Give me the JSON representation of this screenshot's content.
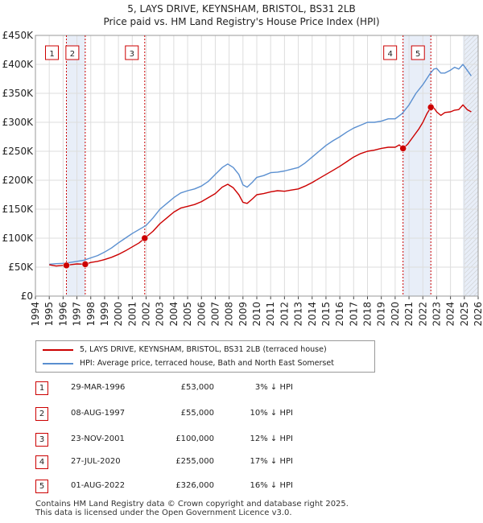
{
  "chart_data": {
    "type": "line",
    "title": "5, LAYS DRIVE, KEYNSHAM, BRISTOL, BS31 2LB",
    "subtitle": "Price paid vs. HM Land Registry's House Price Index (HPI)",
    "xlabel": "",
    "ylabel": "",
    "xlim": [
      1994,
      2026
    ],
    "ylim": [
      0,
      450000
    ],
    "x_ticks": [
      "1994",
      "1995",
      "1996",
      "1997",
      "1998",
      "1999",
      "2000",
      "2001",
      "2002",
      "2003",
      "2004",
      "2005",
      "2006",
      "2007",
      "2008",
      "2009",
      "2010",
      "2011",
      "2012",
      "2013",
      "2014",
      "2015",
      "2016",
      "2017",
      "2018",
      "2019",
      "2020",
      "2021",
      "2022",
      "2023",
      "2024",
      "2025",
      "2026"
    ],
    "y_ticks": [
      {
        "value": 0,
        "label": "£0"
      },
      {
        "value": 50000,
        "label": "£50K"
      },
      {
        "value": 100000,
        "label": "£100K"
      },
      {
        "value": 150000,
        "label": "£150K"
      },
      {
        "value": 200000,
        "label": "£200K"
      },
      {
        "value": 250000,
        "label": "£250K"
      },
      {
        "value": 300000,
        "label": "£300K"
      },
      {
        "value": 350000,
        "label": "£350K"
      },
      {
        "value": 400000,
        "label": "£400K"
      },
      {
        "value": 450000,
        "label": "£450K"
      }
    ],
    "shaded_spans": [
      [
        1996.24,
        1997.6
      ],
      [
        2020.57,
        2022.58
      ],
      [
        2024.9,
        2026
      ]
    ],
    "series": [
      {
        "name": "5, LAYS DRIVE, KEYNSHAM, BRISTOL, BS31 2LB (terraced house)",
        "color": "#cc0000",
        "x": [
          1995.0,
          1995.5,
          1996.0,
          1996.24,
          1996.6,
          1997.0,
          1997.6,
          1998.0,
          1998.5,
          1999.0,
          1999.5,
          2000.0,
          2000.5,
          2001.0,
          2001.5,
          2001.9,
          2002.5,
          2003.0,
          2003.5,
          2004.0,
          2004.5,
          2005.0,
          2005.5,
          2006.0,
          2006.5,
          2007.0,
          2007.5,
          2007.9,
          2008.3,
          2008.7,
          2009.0,
          2009.3,
          2009.7,
          2010.0,
          2010.5,
          2011.0,
          2011.5,
          2012.0,
          2012.5,
          2013.0,
          2013.5,
          2014.0,
          2014.5,
          2015.0,
          2015.5,
          2016.0,
          2016.5,
          2017.0,
          2017.5,
          2018.0,
          2018.5,
          2019.0,
          2019.5,
          2020.0,
          2020.3,
          2020.57,
          2020.9,
          2021.3,
          2021.7,
          2022.0,
          2022.3,
          2022.58,
          2022.8,
          2023.0,
          2023.3,
          2023.6,
          2024.0,
          2024.3,
          2024.6,
          2024.9,
          2025.2,
          2025.5
        ],
        "y": [
          54000,
          52000,
          53000,
          53000,
          54500,
          55500,
          55000,
          58000,
          60000,
          63000,
          67000,
          72000,
          78000,
          85000,
          92000,
          100000,
          112000,
          125000,
          135000,
          145000,
          152000,
          155000,
          158000,
          163000,
          170000,
          177000,
          188000,
          193000,
          187000,
          175000,
          162000,
          160000,
          168000,
          175000,
          177000,
          180000,
          182000,
          181000,
          183000,
          185000,
          190000,
          196000,
          203000,
          210000,
          217000,
          224000,
          232000,
          240000,
          246000,
          250000,
          252000,
          255000,
          257000,
          257000,
          261000,
          255000,
          262000,
          275000,
          288000,
          300000,
          315000,
          326000,
          325000,
          318000,
          312000,
          317000,
          318000,
          321000,
          322000,
          330000,
          322000,
          318000
        ]
      },
      {
        "name": "HPI: Average price, terraced house, Bath and North East Somerset",
        "color": "#5a8fd0",
        "x": [
          1995.0,
          1995.5,
          1996.0,
          1996.5,
          1997.0,
          1997.5,
          1998.0,
          1998.5,
          1999.0,
          1999.5,
          2000.0,
          2000.5,
          2001.0,
          2001.5,
          2002.0,
          2002.5,
          2003.0,
          2003.5,
          2004.0,
          2004.5,
          2005.0,
          2005.5,
          2006.0,
          2006.5,
          2007.0,
          2007.5,
          2007.9,
          2008.3,
          2008.7,
          2009.0,
          2009.3,
          2009.7,
          2010.0,
          2010.5,
          2011.0,
          2011.5,
          2012.0,
          2012.5,
          2013.0,
          2013.5,
          2014.0,
          2014.5,
          2015.0,
          2015.5,
          2016.0,
          2016.5,
          2017.0,
          2017.5,
          2018.0,
          2018.5,
          2019.0,
          2019.5,
          2020.0,
          2020.5,
          2021.0,
          2021.5,
          2022.0,
          2022.5,
          2022.8,
          2023.0,
          2023.3,
          2023.6,
          2024.0,
          2024.3,
          2024.6,
          2024.9,
          2025.2,
          2025.5
        ],
        "y": [
          55000,
          56000,
          56500,
          58000,
          60000,
          62000,
          66000,
          70000,
          76000,
          83000,
          92000,
          100000,
          108000,
          115000,
          122000,
          135000,
          150000,
          160000,
          170000,
          178000,
          182000,
          185000,
          190000,
          198000,
          210000,
          222000,
          228000,
          222000,
          210000,
          192000,
          188000,
          197000,
          205000,
          208000,
          213000,
          214000,
          216000,
          219000,
          222000,
          230000,
          240000,
          250000,
          260000,
          268000,
          275000,
          283000,
          290000,
          295000,
          300000,
          300000,
          302000,
          306000,
          306000,
          315000,
          330000,
          350000,
          365000,
          383000,
          392000,
          393000,
          385000,
          385000,
          390000,
          395000,
          392000,
          400000,
          390000,
          380000
        ]
      }
    ],
    "transactions": [
      {
        "num": "1",
        "x": 1996.24,
        "price": 53000
      },
      {
        "num": "2",
        "x": 1997.6,
        "price": 55000
      },
      {
        "num": "3",
        "x": 2001.9,
        "price": 100000
      },
      {
        "num": "4",
        "x": 2020.57,
        "price": 255000
      },
      {
        "num": "5",
        "x": 2022.58,
        "price": 326000
      }
    ]
  },
  "legend": {
    "property": "5, LAYS DRIVE, KEYNSHAM, BRISTOL, BS31 2LB (terraced house)",
    "hpi": "HPI: Average price, terraced house, Bath and North East Somerset"
  },
  "table": [
    {
      "num": "1",
      "date": "29-MAR-1996",
      "price": "£53,000",
      "hpi": "3% ↓ HPI"
    },
    {
      "num": "2",
      "date": "08-AUG-1997",
      "price": "£55,000",
      "hpi": "10% ↓ HPI"
    },
    {
      "num": "3",
      "date": "23-NOV-2001",
      "price": "£100,000",
      "hpi": "12% ↓ HPI"
    },
    {
      "num": "4",
      "date": "27-JUL-2020",
      "price": "£255,000",
      "hpi": "17% ↓ HPI"
    },
    {
      "num": "5",
      "date": "01-AUG-2022",
      "price": "£326,000",
      "hpi": "16% ↓ HPI"
    }
  ],
  "footer": {
    "line1": "Contains HM Land Registry data © Crown copyright and database right 2025.",
    "line2": "This data is licensed under the Open Government Licence v3.0."
  },
  "colors": {
    "property": "#cc0000",
    "hpi": "#5a8fd0",
    "shade": "#e8eef8",
    "grid": "#dddddd"
  }
}
